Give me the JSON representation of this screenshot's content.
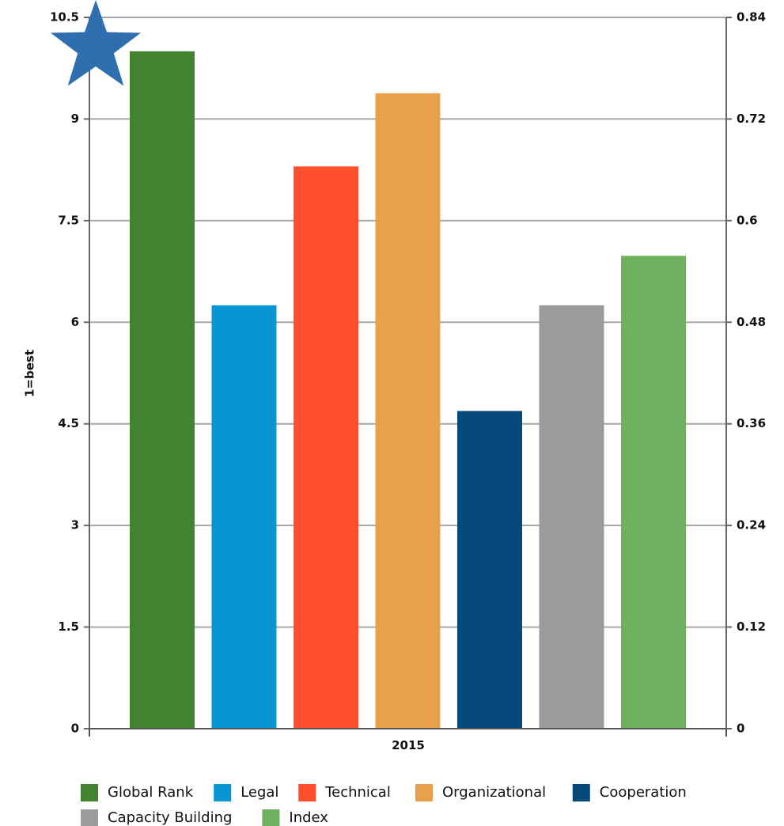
{
  "chart_data": {
    "type": "bar",
    "xlabel": "",
    "ylabel": "1=best",
    "x_tick": "2015",
    "ylim": [
      0,
      10.5
    ],
    "yticks": [
      "0",
      "1.5",
      "3",
      "4.5",
      "6",
      "7.5",
      "9",
      "10.5"
    ],
    "ylim_right": [
      0,
      0.84
    ],
    "yticks_right": [
      "0",
      "0.12",
      "0.24",
      "0.36",
      "0.48",
      "0.6",
      "0.72",
      "0.84"
    ],
    "grid": true,
    "legend_position": "bottom",
    "series": [
      {
        "name": "Global Rank",
        "value": 10.0,
        "color": "#43832F"
      },
      {
        "name": "Legal",
        "value": 6.25,
        "color": "#0795D4"
      },
      {
        "name": "Technical",
        "value": 8.3,
        "color": "#FF4E2B"
      },
      {
        "name": "Organizational",
        "value": 9.38,
        "color": "#E9A04A"
      },
      {
        "name": "Cooperation",
        "value": 4.69,
        "color": "#044979"
      },
      {
        "name": "Capacity Building",
        "value": 6.25,
        "color": "#9B9B9B"
      },
      {
        "name": "Index",
        "value": 6.98,
        "color": "#6FB15E"
      }
    ],
    "grid_color": "#A6A6A6",
    "marker": {
      "icon": "star-icon",
      "color": "#2F6FB0"
    }
  }
}
